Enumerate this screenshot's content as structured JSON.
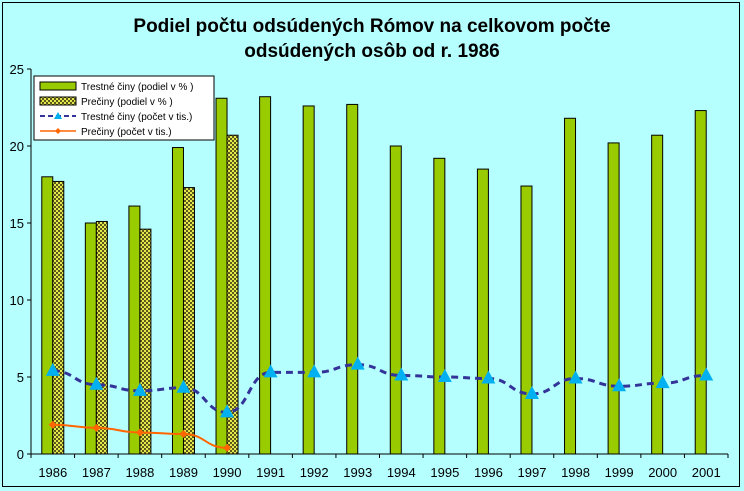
{
  "chart_data": {
    "type": "bar",
    "title_line1": "Podiel počtu odsúdených Rómov na celkovom počte",
    "title_line2": "odsúdených osôb od r. 1986",
    "categories": [
      "1986",
      "1987",
      "1988",
      "1989",
      "1990",
      "1991",
      "1992",
      "1993",
      "1994",
      "1995",
      "1996",
      "1997",
      "1998",
      "1999",
      "2000",
      "2001"
    ],
    "ylim": [
      0,
      25
    ],
    "yticks": [
      0,
      5,
      10,
      15,
      20,
      25
    ],
    "grid": false,
    "legend_position": "top-left",
    "series": [
      {
        "name": "Trestné činy (podiel v % )",
        "kind": "bar",
        "pattern": "solid",
        "color": "#99cc00",
        "values": [
          18.0,
          15.0,
          16.1,
          19.9,
          23.1,
          23.2,
          22.6,
          22.7,
          20.0,
          19.2,
          18.5,
          17.4,
          21.8,
          20.2,
          20.7,
          22.3
        ]
      },
      {
        "name": "Prečiny (podiel v % )",
        "kind": "bar",
        "pattern": "checker",
        "color": "#cccc33",
        "values": [
          17.7,
          15.1,
          14.6,
          17.3,
          20.7,
          null,
          null,
          null,
          null,
          null,
          null,
          null,
          null,
          null,
          null,
          null
        ]
      },
      {
        "name": "Trestné činy (počet v tis.)",
        "kind": "line",
        "style": "dashed",
        "marker": "triangle",
        "color": "#333399",
        "marker_color": "#00b0f0",
        "values": [
          5.4,
          4.5,
          4.1,
          4.3,
          2.7,
          5.3,
          5.3,
          5.8,
          5.1,
          5.0,
          4.9,
          3.9,
          4.9,
          4.4,
          4.6,
          5.1
        ]
      },
      {
        "name": "Prečiny (počet v tis.)",
        "kind": "line",
        "style": "solid",
        "marker": "diamond",
        "color": "#ff6600",
        "values": [
          1.9,
          1.7,
          1.4,
          1.3,
          0.4,
          null,
          null,
          null,
          null,
          null,
          null,
          null,
          null,
          null,
          null,
          null
        ]
      }
    ]
  }
}
